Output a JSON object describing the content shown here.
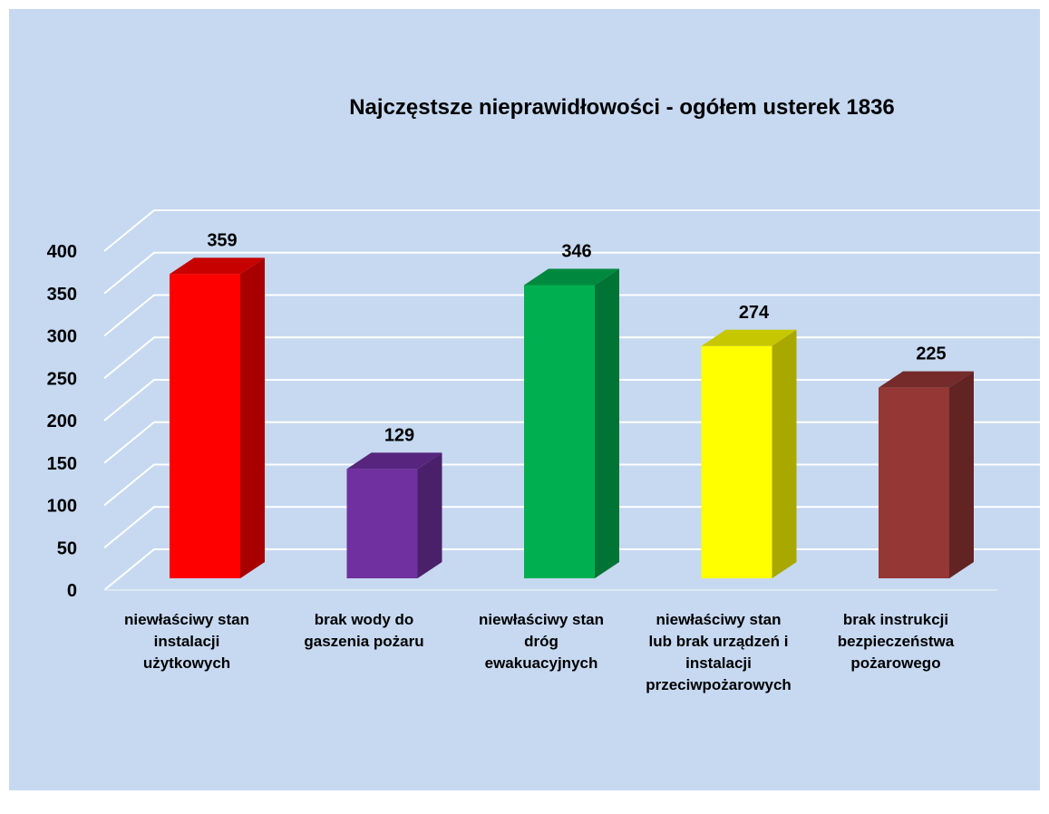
{
  "chart_data": {
    "type": "bar3d",
    "title": "Najczęstsze nieprawidłowości - ogółem usterek 1836",
    "categories": [
      "niewłaściwy stan\ninstalacji\nużytkowych",
      "brak wody do\ngaszenia pożaru",
      "niewłaściwy stan\ndróg\newakuacyjnych",
      "niewłaściwy stan\nlub brak urządzeń i\ninstalacji\nprzeciwpożarowych",
      "brak instrukcji\nbezpieczeństwa\npożarowego"
    ],
    "values": [
      359,
      129,
      346,
      274,
      225
    ],
    "colors": [
      "#ff0000",
      "#7030a0",
      "#00b050",
      "#ffff00",
      "#953735"
    ],
    "ylim": [
      0,
      400
    ],
    "yticks": [
      0,
      50,
      100,
      150,
      200,
      250,
      300,
      350,
      400
    ],
    "grid": true
  }
}
